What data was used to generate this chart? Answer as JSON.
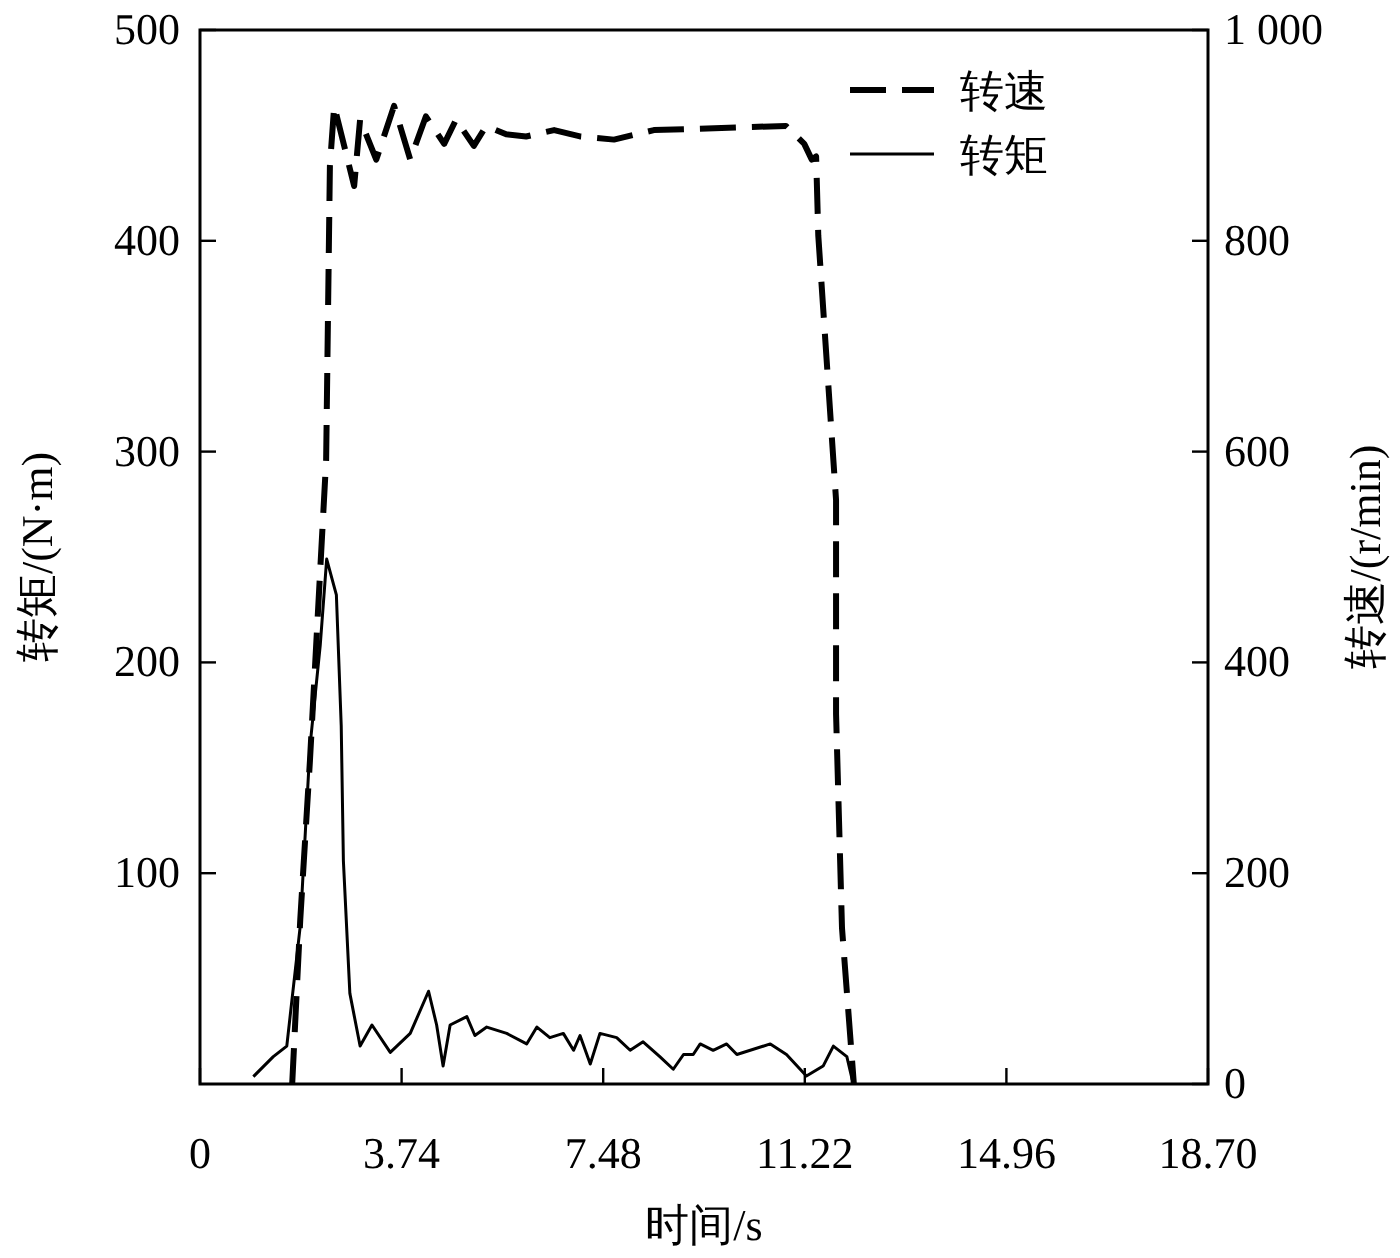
{
  "chart_data": {
    "type": "line",
    "xlabel": "时间/s",
    "ylabel": "转矩/(N·m)",
    "y2label": "转速/(r/min)",
    "xlim": [
      0,
      18.7
    ],
    "xticks": [
      0,
      3.74,
      7.48,
      11.22,
      14.96,
      {
        "value": 18.7,
        "label": "18.70"
      }
    ],
    "ylim": [
      0,
      500
    ],
    "yticks": [
      100,
      200,
      300,
      400,
      500
    ],
    "y2lim": [
      0,
      1000
    ],
    "y2ticks": [
      0,
      200,
      400,
      600,
      800,
      {
        "value": 1000,
        "label": "1 000"
      }
    ],
    "legend": "top right",
    "series": [
      {
        "name": "转速",
        "color": "#000000",
        "axis": "y2",
        "line_style": "dashed",
        "x": [
          1.71,
          1.86,
          2.04,
          2.34,
          2.41,
          2.49,
          2.86,
          2.97,
          3.27,
          3.6,
          3.9,
          4.19,
          4.53,
          4.75,
          5.08,
          5.31,
          5.68,
          6.05,
          6.57,
          7.05,
          7.68,
          8.42,
          10.87,
          11.21,
          11.35,
          11.43,
          11.47,
          11.8,
          11.8,
          11.91,
          12.13
        ],
        "values": [
          0,
          156,
          307,
          592,
          871,
          928,
          852,
          915,
          877,
          928,
          877,
          918,
          892,
          915,
          890,
          909,
          901,
          899,
          905,
          899,
          896,
          905,
          909,
          892,
          877,
          880,
          805,
          554,
          351,
          148,
          0
        ]
      },
      {
        "name": "转矩",
        "color": "#000000",
        "line_style": "solid",
        "x": [
          0.99,
          1.36,
          1.61,
          1.86,
          2.04,
          2.23,
          2.35,
          2.53,
          2.62,
          2.66,
          2.78,
          2.97,
          3.19,
          3.53,
          3.9,
          4.24,
          4.39,
          4.51,
          4.64,
          4.95,
          5.1,
          5.32,
          5.69,
          6.06,
          6.25,
          6.49,
          6.74,
          6.93,
          7.05,
          7.24,
          7.42,
          7.73,
          7.98,
          8.22,
          8.53,
          8.78,
          8.97,
          9.15,
          9.28,
          9.52,
          9.77,
          9.96,
          10.58,
          10.88,
          11.25,
          11.56,
          11.75,
          12.0,
          12.1
        ],
        "values": [
          3.5,
          13,
          18,
          75,
          160,
          208,
          249,
          232,
          170,
          106,
          43,
          18,
          28,
          15,
          24,
          44,
          28,
          8.5,
          28,
          32,
          23,
          27,
          24,
          19,
          27,
          22,
          24,
          16,
          23,
          9.5,
          24,
          22,
          16,
          20,
          13,
          7,
          14,
          14,
          19,
          16,
          19,
          14,
          19,
          14,
          3.8,
          8.5,
          18,
          13,
          2
        ]
      }
    ]
  }
}
